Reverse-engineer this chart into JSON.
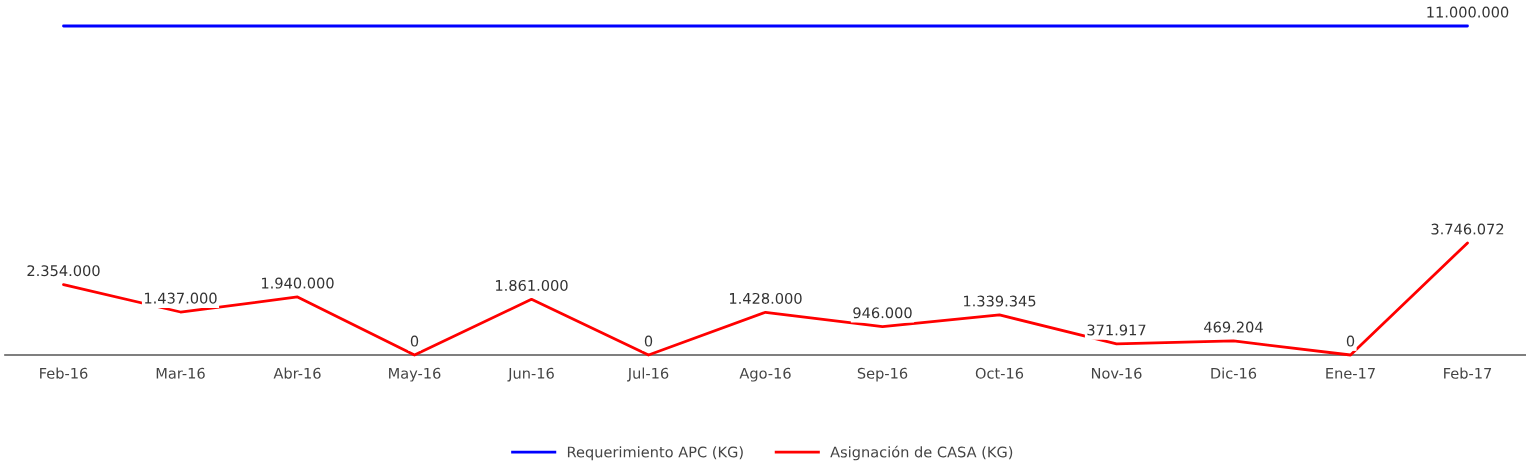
{
  "chart_data": {
    "type": "line",
    "categories": [
      "Feb-16",
      "Mar-16",
      "Abr-16",
      "May-16",
      "Jun-16",
      "Jul-16",
      "Ago-16",
      "Sep-16",
      "Oct-16",
      "Nov-16",
      "Dic-16",
      "Ene-17",
      "Feb-17"
    ],
    "series": [
      {
        "name": "Requerimiento APC (KG)",
        "color": "#0000ff",
        "values": [
          11000000,
          11000000,
          11000000,
          11000000,
          11000000,
          11000000,
          11000000,
          11000000,
          11000000,
          11000000,
          11000000,
          11000000,
          11000000
        ],
        "value_labels": [
          null,
          null,
          null,
          null,
          null,
          null,
          null,
          null,
          null,
          null,
          null,
          null,
          "11.000.000"
        ]
      },
      {
        "name": "Asignación de CASA (KG)",
        "color": "#ff0000",
        "values": [
          2354000,
          1437000,
          1940000,
          0,
          1861000,
          0,
          1428000,
          946000,
          1339345,
          371917,
          469204,
          0,
          3746072
        ],
        "value_labels": [
          "2.354.000",
          "1.437.000",
          "1.940.000",
          "0",
          "1.861.000",
          "0",
          "1.428.000",
          "946.000",
          "1.339.345",
          "371.917",
          "469.204",
          "0",
          "3.746.072"
        ]
      }
    ],
    "tick_labels": "x",
    "legend": "bottom"
  }
}
